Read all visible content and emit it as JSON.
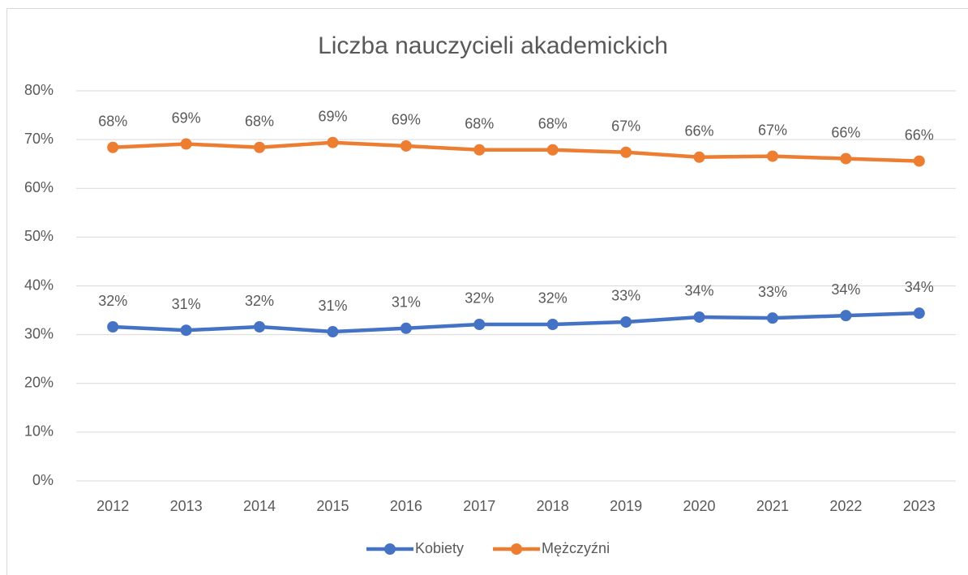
{
  "chart_data": {
    "type": "line",
    "title": "Liczba nauczycieli akademickich",
    "categories": [
      "2012",
      "2013",
      "2014",
      "2015",
      "2016",
      "2017",
      "2018",
      "2019",
      "2020",
      "2021",
      "2022",
      "2023"
    ],
    "series": [
      {
        "name": "Kobiety",
        "color": "#4472c4",
        "values": [
          31.6,
          30.9,
          31.6,
          30.6,
          31.3,
          32.1,
          32.1,
          32.6,
          33.6,
          33.4,
          33.9,
          34.4
        ],
        "value_labels": [
          "32%",
          "31%",
          "32%",
          "31%",
          "31%",
          "32%",
          "32%",
          "33%",
          "34%",
          "33%",
          "34%",
          "34%"
        ]
      },
      {
        "name": "Mężczyźni",
        "color": "#ed7d31",
        "values": [
          68.4,
          69.1,
          68.4,
          69.4,
          68.7,
          67.9,
          67.9,
          67.4,
          66.4,
          66.6,
          66.1,
          65.6
        ],
        "value_labels": [
          "68%",
          "69%",
          "68%",
          "69%",
          "69%",
          "68%",
          "68%",
          "67%",
          "66%",
          "67%",
          "66%",
          "66%"
        ]
      }
    ],
    "ylim": [
      0,
      80
    ],
    "yticks": [
      {
        "value": 0,
        "label": "0%"
      },
      {
        "value": 10,
        "label": "10%"
      },
      {
        "value": 20,
        "label": "20%"
      },
      {
        "value": 30,
        "label": "30%"
      },
      {
        "value": 40,
        "label": "40%"
      },
      {
        "value": 50,
        "label": "50%"
      },
      {
        "value": 60,
        "label": "60%"
      },
      {
        "value": 70,
        "label": "70%"
      },
      {
        "value": 80,
        "label": "80%"
      }
    ],
    "grid": true,
    "legend": "bottom"
  }
}
